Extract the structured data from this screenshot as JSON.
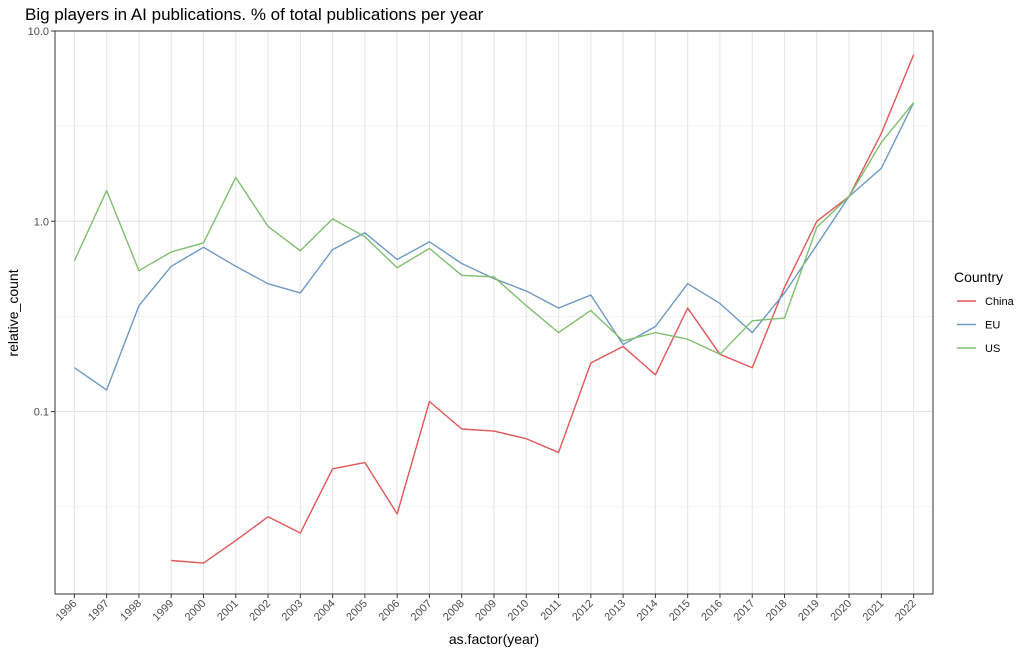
{
  "chart_data": {
    "type": "line",
    "title": "Big players in AI publications. % of total publications per year",
    "xlabel": "as.factor(year)",
    "ylabel": "relative_count",
    "y_scale": "log10",
    "ylim": [
      0.011,
      10
    ],
    "y_ticks": [
      0.1,
      1.0,
      10.0
    ],
    "y_tick_labels": [
      "0.1",
      "1.0",
      "10.0"
    ],
    "grid": true,
    "legend_title": "Country",
    "legend_position": "right",
    "categories": [
      "1996",
      "1997",
      "1998",
      "1999",
      "2000",
      "2001",
      "2002",
      "2003",
      "2004",
      "2005",
      "2006",
      "2007",
      "2008",
      "2009",
      "2010",
      "2011",
      "2012",
      "2013",
      "2014",
      "2015",
      "2016",
      "2017",
      "2018",
      "2019",
      "2020",
      "2021",
      "2022"
    ],
    "series": [
      {
        "name": "China",
        "color": "#e15759",
        "values": [
          null,
          null,
          null,
          0.0165,
          0.016,
          0.021,
          0.028,
          0.023,
          0.05,
          0.054,
          0.029,
          0.113,
          0.081,
          0.079,
          0.072,
          0.061,
          0.18,
          0.22,
          0.156,
          0.35,
          0.2,
          0.17,
          0.45,
          1.0,
          1.35,
          2.9,
          7.5
        ]
      },
      {
        "name": "EU",
        "color": "#6e99c5",
        "values": [
          0.17,
          0.13,
          0.36,
          0.58,
          0.73,
          0.58,
          0.47,
          0.42,
          0.71,
          0.87,
          0.63,
          0.78,
          0.6,
          0.5,
          0.43,
          0.35,
          0.41,
          0.225,
          0.28,
          0.47,
          0.37,
          0.26,
          0.42,
          0.75,
          1.35,
          1.9,
          4.2
        ]
      },
      {
        "name": "US",
        "color": "#7fbf6f",
        "values": [
          0.62,
          1.45,
          0.55,
          0.69,
          0.77,
          1.7,
          0.94,
          0.7,
          1.03,
          0.83,
          0.57,
          0.72,
          0.52,
          0.51,
          0.36,
          0.26,
          0.34,
          0.235,
          0.26,
          0.24,
          0.2,
          0.3,
          0.31,
          0.93,
          1.35,
          2.6,
          4.2
        ]
      }
    ]
  }
}
